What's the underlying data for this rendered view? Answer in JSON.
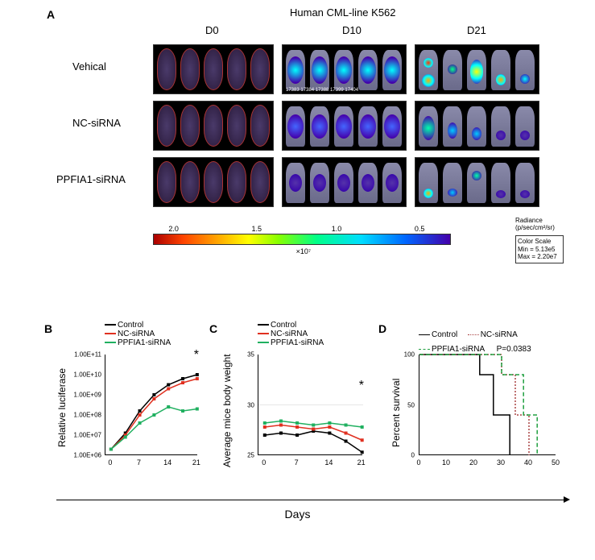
{
  "panelA": {
    "label": "A",
    "title": "Human CML-line K562",
    "columns": [
      "D0",
      "D10",
      "D21"
    ],
    "rows": [
      "Vehical",
      "NC-siRNA",
      "PPFIA1-siRNA"
    ],
    "colorbar": {
      "ticks": [
        "2.0",
        "1.5",
        "1.0",
        "0.5"
      ],
      "exponent": "×10⁷"
    },
    "radiance": {
      "title": "Radiance",
      "units": "(p/sec/cm²/sr)"
    },
    "colorScale": {
      "title": "Color Scale",
      "min": "Min = 5.13e5",
      "max": "Max = 2.20e7"
    }
  },
  "panelB": {
    "label": "B",
    "ylabel": "Relative luciferase",
    "legend": [
      "Control",
      "NC-siRNA",
      "PPFIA1-siRNA"
    ],
    "colors": {
      "control": "#000000",
      "nc": "#e03020",
      "ppfia1": "#20b060"
    },
    "xticks": [
      "0",
      "7",
      "14",
      "21"
    ],
    "yticks": [
      "1.00E+06",
      "1.00E+07",
      "1.00E+08",
      "1.00E+09",
      "1.00E+10",
      "1.00E+11"
    ],
    "star": "*",
    "series": {
      "control": [
        6.3,
        7.1,
        8.2,
        9.0,
        9.5,
        9.8,
        10.0
      ],
      "nc": [
        6.3,
        7.0,
        8.0,
        8.8,
        9.3,
        9.6,
        9.8
      ],
      "ppfia1": [
        6.3,
        6.9,
        7.6,
        8.0,
        8.4,
        8.2,
        8.3
      ]
    }
  },
  "panelC": {
    "label": "C",
    "ylabel": "Average mice body weight",
    "legend": [
      "Control",
      "NC-siRNA",
      "PPFIA1-siRNA"
    ],
    "colors": {
      "control": "#000000",
      "nc": "#e03020",
      "ppfia1": "#20b060"
    },
    "xticks": [
      "0",
      "7",
      "14",
      "21"
    ],
    "yticks": [
      "25",
      "30",
      "35"
    ],
    "star": "*",
    "series": {
      "control": [
        27.0,
        27.2,
        27.0,
        27.4,
        27.2,
        26.4,
        25.3
      ],
      "nc": [
        27.8,
        28.0,
        27.8,
        27.6,
        27.8,
        27.2,
        26.5
      ],
      "ppfia1": [
        28.2,
        28.4,
        28.2,
        28.0,
        28.2,
        28.0,
        27.8
      ]
    }
  },
  "panelD": {
    "label": "D",
    "ylabel": "Percent survival",
    "legend": [
      "Control",
      "NC-siRNA",
      "PPFIA1-siRNA"
    ],
    "pvalue": "P=0.0383",
    "colors": {
      "control": "#000000",
      "nc": "#aa4444",
      "ppfia1": "#20a040"
    },
    "xticks": [
      "0",
      "10",
      "20",
      "30",
      "40",
      "50"
    ],
    "yticks": [
      "0",
      "50",
      "100"
    ],
    "survival": {
      "control": [
        [
          0,
          100
        ],
        [
          22,
          100
        ],
        [
          22,
          80
        ],
        [
          27,
          80
        ],
        [
          27,
          40
        ],
        [
          33,
          40
        ],
        [
          33,
          0
        ]
      ],
      "nc": [
        [
          0,
          100
        ],
        [
          30,
          100
        ],
        [
          30,
          80
        ],
        [
          35,
          80
        ],
        [
          35,
          40
        ],
        [
          40,
          40
        ],
        [
          40,
          0
        ]
      ],
      "ppfia1": [
        [
          0,
          100
        ],
        [
          30,
          100
        ],
        [
          30,
          80
        ],
        [
          38,
          80
        ],
        [
          38,
          40
        ],
        [
          43,
          40
        ],
        [
          43,
          0
        ]
      ]
    }
  },
  "xaxis_label": "Days"
}
